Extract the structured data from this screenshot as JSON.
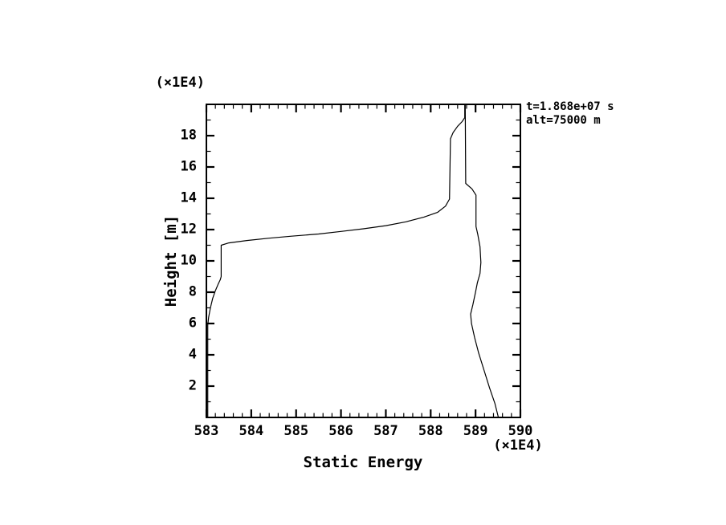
{
  "page": {
    "background": "#ffffff",
    "ink_color": "#000000"
  },
  "chart_data": {
    "type": "line",
    "title": "",
    "xlabel": "Static Energy",
    "ylabel": "Height [m]",
    "x_unit_note": "(×1E4)",
    "y_unit_note": "(×1E4)",
    "xlim": [
      583,
      590
    ],
    "ylim": [
      0,
      20
    ],
    "x_major_ticks": [
      583,
      584,
      585,
      586,
      587,
      588,
      589,
      590
    ],
    "x_minor_interval": 0.2,
    "y_major_ticks": [
      2,
      4,
      6,
      8,
      10,
      12,
      14,
      16,
      18
    ],
    "y_minor_interval": 1,
    "grid": false,
    "legend_position": "none",
    "line_color": "#000000",
    "annotations": {
      "line1": "t=1.868e+07 s",
      "line2": "alt=75000 m"
    },
    "series": [
      {
        "name": "left-static-energy-profile",
        "points": [
          [
            583.03,
            0.0
          ],
          [
            583.03,
            5.9
          ],
          [
            583.05,
            6.4
          ],
          [
            583.09,
            7.0
          ],
          [
            583.14,
            7.6
          ],
          [
            583.2,
            8.1
          ],
          [
            583.26,
            8.5
          ],
          [
            583.31,
            8.8
          ],
          [
            583.33,
            9.0
          ],
          [
            583.33,
            11.0
          ],
          [
            583.5,
            11.15
          ],
          [
            583.9,
            11.3
          ],
          [
            584.4,
            11.45
          ],
          [
            584.9,
            11.58
          ],
          [
            585.5,
            11.72
          ],
          [
            586.0,
            11.88
          ],
          [
            586.5,
            12.05
          ],
          [
            587.0,
            12.25
          ],
          [
            587.45,
            12.5
          ],
          [
            587.85,
            12.8
          ],
          [
            588.15,
            13.1
          ],
          [
            588.33,
            13.5
          ],
          [
            588.42,
            13.95
          ],
          [
            588.44,
            17.8
          ],
          [
            588.5,
            18.2
          ],
          [
            588.6,
            18.6
          ],
          [
            588.7,
            18.9
          ],
          [
            588.76,
            19.15
          ],
          [
            588.76,
            20.0
          ]
        ]
      },
      {
        "name": "right-static-energy-profile",
        "points": [
          [
            589.51,
            0.0
          ],
          [
            589.43,
            0.9
          ],
          [
            589.31,
            1.9
          ],
          [
            589.19,
            3.0
          ],
          [
            589.07,
            4.1
          ],
          [
            588.98,
            5.1
          ],
          [
            588.91,
            6.0
          ],
          [
            588.89,
            6.6
          ],
          [
            588.94,
            7.2
          ],
          [
            589.0,
            8.0
          ],
          [
            589.04,
            8.6
          ],
          [
            589.1,
            9.2
          ],
          [
            589.12,
            9.9
          ],
          [
            589.1,
            10.9
          ],
          [
            589.05,
            11.7
          ],
          [
            589.01,
            12.2
          ],
          [
            589.01,
            14.2
          ],
          [
            588.92,
            14.6
          ],
          [
            588.78,
            14.95
          ],
          [
            588.77,
            20.0
          ]
        ]
      }
    ]
  }
}
